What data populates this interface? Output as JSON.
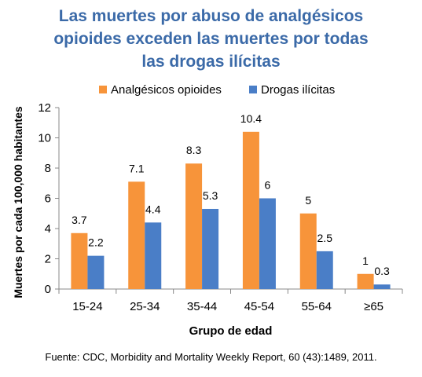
{
  "title_lines": [
    "Las muertes por abuso de analgésicos",
    "opioides exceden las muertes por todas",
    "las drogas ilícitas"
  ],
  "source": "Fuente: CDC, Morbidity and Mortality Weekly Report, 60 (43):1489, 2011.",
  "colors": {
    "opioids": "#f7943a",
    "illicit": "#4a7ec7",
    "title": "#3b6aa8"
  },
  "chart_data": {
    "type": "bar",
    "title": "Las muertes por abuso de analgésicos opioides exceden las muertes por todas las drogas ilícitas",
    "xlabel": "Grupo de edad",
    "ylabel": "Muertes por cada 100,000 habitantes",
    "categories": [
      "15-24",
      "25-34",
      "35-44",
      "45-54",
      "55-64",
      "≥65"
    ],
    "series": [
      {
        "name": "Analgésicos opioides",
        "values": [
          3.7,
          7.1,
          8.3,
          10.4,
          5,
          1
        ],
        "labels": [
          "3.7",
          "7.1",
          "8.3",
          "10.4",
          "5",
          "1"
        ]
      },
      {
        "name": "Drogas ilícitas",
        "values": [
          2.2,
          4.4,
          5.3,
          6,
          2.5,
          0.3
        ],
        "labels": [
          "2.2",
          "4.4",
          "5.3",
          "6",
          "2.5",
          "0.3"
        ]
      }
    ],
    "ylim": [
      0,
      12
    ],
    "yticks": [
      "0",
      "2",
      "4",
      "6",
      "8",
      "10",
      "12"
    ],
    "legend_position": "top",
    "grid": false
  }
}
